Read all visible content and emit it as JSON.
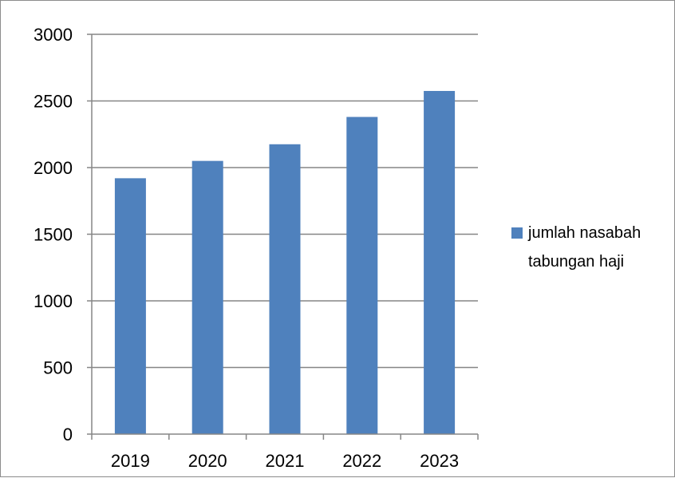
{
  "chart_data": {
    "type": "bar",
    "title": "",
    "xlabel": "",
    "ylabel": "",
    "categories": [
      "2019",
      "2020",
      "2021",
      "2022",
      "2023"
    ],
    "series": [
      {
        "name": "jumlah nasabah tabungan haji",
        "values": [
          1920,
          2050,
          2175,
          2380,
          2575
        ],
        "color": "#4f81bd"
      }
    ],
    "legend_lines": [
      "jumlah nasabah",
      "tabungan haji"
    ],
    "ylim": [
      0,
      3000
    ],
    "yticks": [
      0,
      500,
      1000,
      1500,
      2000,
      2500,
      3000
    ],
    "grid": true,
    "legend_position": "right",
    "colors": {
      "grid": "#868686",
      "axis": "#868686"
    }
  }
}
